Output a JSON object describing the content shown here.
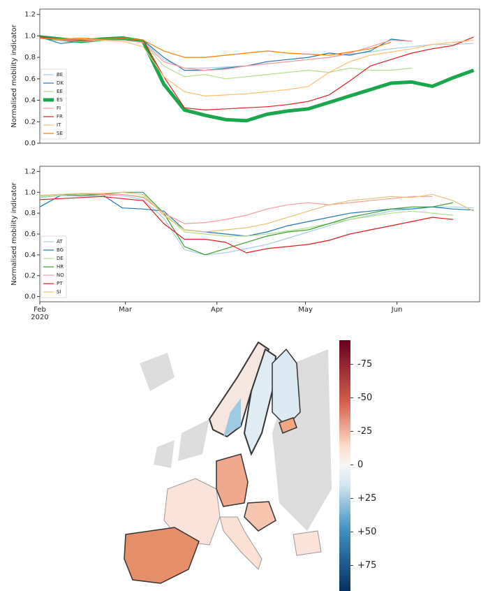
{
  "chart_data": [
    {
      "type": "line",
      "ylabel": "Normalised mobility indicator",
      "x": [
        0,
        7,
        14,
        21,
        28,
        35,
        42,
        49,
        56,
        63,
        70,
        77,
        84,
        91,
        98,
        105,
        112,
        119,
        126,
        133,
        140,
        147
      ],
      "xlim": [
        0,
        149
      ],
      "ylim": [
        0,
        1.25
      ],
      "yticks": [
        {
          "value": 0,
          "label": "0.0"
        },
        0.2,
        0.4,
        0.6,
        0.8,
        {
          "value": 1,
          "label": "1.0"
        },
        1.2
      ],
      "legend": "lower left",
      "series": [
        {
          "name": "BE",
          "color": "#a6cee3",
          "values": [
            0.98,
            0.97,
            0.96,
            0.97,
            0.97,
            0.95,
            0.78,
            0.7,
            0.7,
            0.71,
            0.72,
            0.74,
            0.76,
            0.78,
            0.8,
            0.83,
            0.85,
            0.88,
            0.9,
            0.92,
            0.92,
            0.93
          ]
        },
        {
          "name": "DK",
          "color": "#1f78b4",
          "values": [
            0.99,
            0.93,
            0.95,
            0.96,
            0.97,
            0.96,
            0.8,
            0.68,
            0.68,
            0.7,
            0.72,
            0.76,
            0.78,
            0.8,
            0.84,
            0.82,
            0.86,
            0.97,
            0.95,
            null,
            null,
            null
          ]
        },
        {
          "name": "EE",
          "color": "#b2df8a",
          "values": [
            0.98,
            0.97,
            0.96,
            0.96,
            0.97,
            0.94,
            0.72,
            0.62,
            0.64,
            0.6,
            0.62,
            0.64,
            0.66,
            0.68,
            0.66,
            0.7,
            0.68,
            0.68,
            0.7,
            null,
            null,
            null
          ]
        },
        {
          "name": "ES",
          "color": "#1aa64a",
          "linewidth": 5,
          "values": [
            0.99,
            0.97,
            0.95,
            0.97,
            0.98,
            0.95,
            0.55,
            0.31,
            0.26,
            0.22,
            0.21,
            0.27,
            0.3,
            0.32,
            0.38,
            0.44,
            0.5,
            0.56,
            0.57,
            0.53,
            0.61,
            0.68
          ]
        },
        {
          "name": "FI",
          "color": "#fb9a99",
          "values": [
            0.99,
            0.96,
            0.95,
            0.96,
            0.96,
            0.94,
            0.76,
            0.7,
            0.68,
            0.69,
            0.72,
            0.74,
            0.76,
            0.78,
            0.8,
            0.84,
            0.9,
            0.96,
            0.95,
            null,
            null,
            null
          ]
        },
        {
          "name": "FR",
          "color": "#e31a1c",
          "values": [
            0.99,
            0.97,
            0.96,
            0.97,
            0.98,
            0.96,
            0.62,
            0.33,
            0.31,
            0.32,
            0.33,
            0.34,
            0.36,
            0.39,
            0.45,
            0.58,
            0.72,
            0.78,
            0.84,
            0.88,
            0.91,
            0.99
          ]
        },
        {
          "name": "IT",
          "color": "#fdbf6f",
          "values": [
            0.98,
            0.97,
            0.97,
            0.96,
            0.95,
            0.9,
            0.62,
            0.48,
            0.44,
            0.45,
            0.46,
            0.48,
            0.5,
            0.53,
            0.66,
            0.76,
            0.82,
            0.85,
            0.88,
            0.92,
            0.94,
            0.96
          ]
        },
        {
          "name": "SE",
          "color": "#ff7f00",
          "values": [
            0.98,
            0.97,
            0.98,
            0.97,
            0.98,
            0.96,
            0.86,
            0.8,
            0.8,
            0.82,
            0.84,
            0.86,
            0.84,
            0.83,
            0.82,
            0.85,
            0.88,
            0.94,
            null,
            null,
            null,
            null
          ]
        }
      ]
    },
    {
      "type": "line",
      "ylabel": "Normalised mobility indicator",
      "x": [
        0,
        7,
        14,
        21,
        28,
        35,
        42,
        49,
        56,
        63,
        70,
        77,
        84,
        91,
        98,
        105,
        112,
        119,
        126,
        133,
        140,
        147
      ],
      "xlim": [
        0,
        149
      ],
      "ylim": [
        -0.05,
        1.25
      ],
      "xticks": [
        {
          "value": 0,
          "label": "Feb\n2020"
        },
        {
          "value": 29,
          "label": "Mar"
        },
        {
          "value": 60,
          "label": "Apr"
        },
        {
          "value": 90,
          "label": "May"
        },
        {
          "value": 121,
          "label": "Jun"
        }
      ],
      "yticks": [
        {
          "value": 0,
          "label": "0.0"
        },
        0.2,
        0.4,
        0.6,
        0.8,
        {
          "value": 1,
          "label": "1.0"
        },
        1.2
      ],
      "legend": "lower left",
      "series": [
        {
          "name": "AT",
          "color": "#a6cee3",
          "values": [
            0.95,
            0.97,
            0.96,
            0.97,
            0.97,
            0.93,
            0.75,
            0.45,
            0.4,
            0.42,
            0.46,
            0.5,
            0.56,
            0.62,
            0.68,
            0.74,
            0.78,
            0.82,
            0.84,
            0.86,
            0.86,
            0.85
          ]
        },
        {
          "name": "BG",
          "color": "#1f78b4",
          "values": [
            0.86,
            0.97,
            0.98,
            0.98,
            0.85,
            0.84,
            0.82,
            0.64,
            0.62,
            0.6,
            0.58,
            0.62,
            0.68,
            0.72,
            0.76,
            0.8,
            0.82,
            0.84,
            0.84,
            0.86,
            0.84,
            0.83
          ]
        },
        {
          "name": "DE",
          "color": "#b2df8a",
          "values": [
            0.96,
            0.97,
            0.98,
            0.97,
            0.98,
            0.96,
            0.8,
            0.62,
            0.6,
            0.58,
            0.58,
            0.6,
            0.63,
            0.66,
            0.7,
            0.74,
            0.77,
            0.8,
            0.82,
            0.8,
            0.78,
            null
          ]
        },
        {
          "name": "HR",
          "color": "#33a02c",
          "values": [
            0.97,
            0.98,
            0.97,
            0.98,
            1.0,
            1.0,
            0.8,
            0.48,
            0.4,
            0.46,
            0.52,
            0.58,
            0.62,
            0.64,
            0.7,
            0.76,
            0.8,
            0.84,
            0.86,
            0.86,
            0.9,
            null
          ]
        },
        {
          "name": "NO",
          "color": "#fb9a99",
          "values": [
            0.97,
            0.98,
            0.99,
            0.98,
            0.98,
            0.95,
            0.8,
            0.7,
            0.71,
            0.74,
            0.78,
            0.84,
            0.88,
            0.9,
            0.88,
            0.9,
            0.92,
            0.94,
            0.96,
            0.96,
            null,
            null
          ]
        },
        {
          "name": "PT",
          "color": "#e31a1c",
          "values": [
            0.93,
            0.94,
            0.95,
            0.96,
            0.94,
            0.92,
            0.7,
            0.55,
            0.55,
            0.52,
            0.42,
            0.46,
            0.48,
            0.5,
            0.54,
            0.6,
            0.64,
            0.68,
            0.72,
            0.76,
            0.74,
            null
          ]
        },
        {
          "name": "SI",
          "color": "#e8c170",
          "values": [
            0.97,
            0.98,
            0.99,
            0.99,
            1.0,
            0.98,
            0.78,
            0.64,
            0.62,
            0.64,
            0.66,
            0.7,
            0.76,
            0.82,
            0.88,
            0.92,
            0.94,
            0.96,
            0.95,
            0.98,
            0.92,
            0.82
          ]
        }
      ]
    },
    {
      "type": "map",
      "colorbar_lim": [
        -93,
        94
      ],
      "colorbar_ticks": [
        -75,
        -50,
        -25,
        {
          "value": 0,
          "label": "0"
        },
        {
          "value": 25,
          "label": "+25"
        },
        {
          "value": 50,
          "label": "+50"
        },
        {
          "value": 75,
          "label": "+75"
        }
      ]
    }
  ]
}
